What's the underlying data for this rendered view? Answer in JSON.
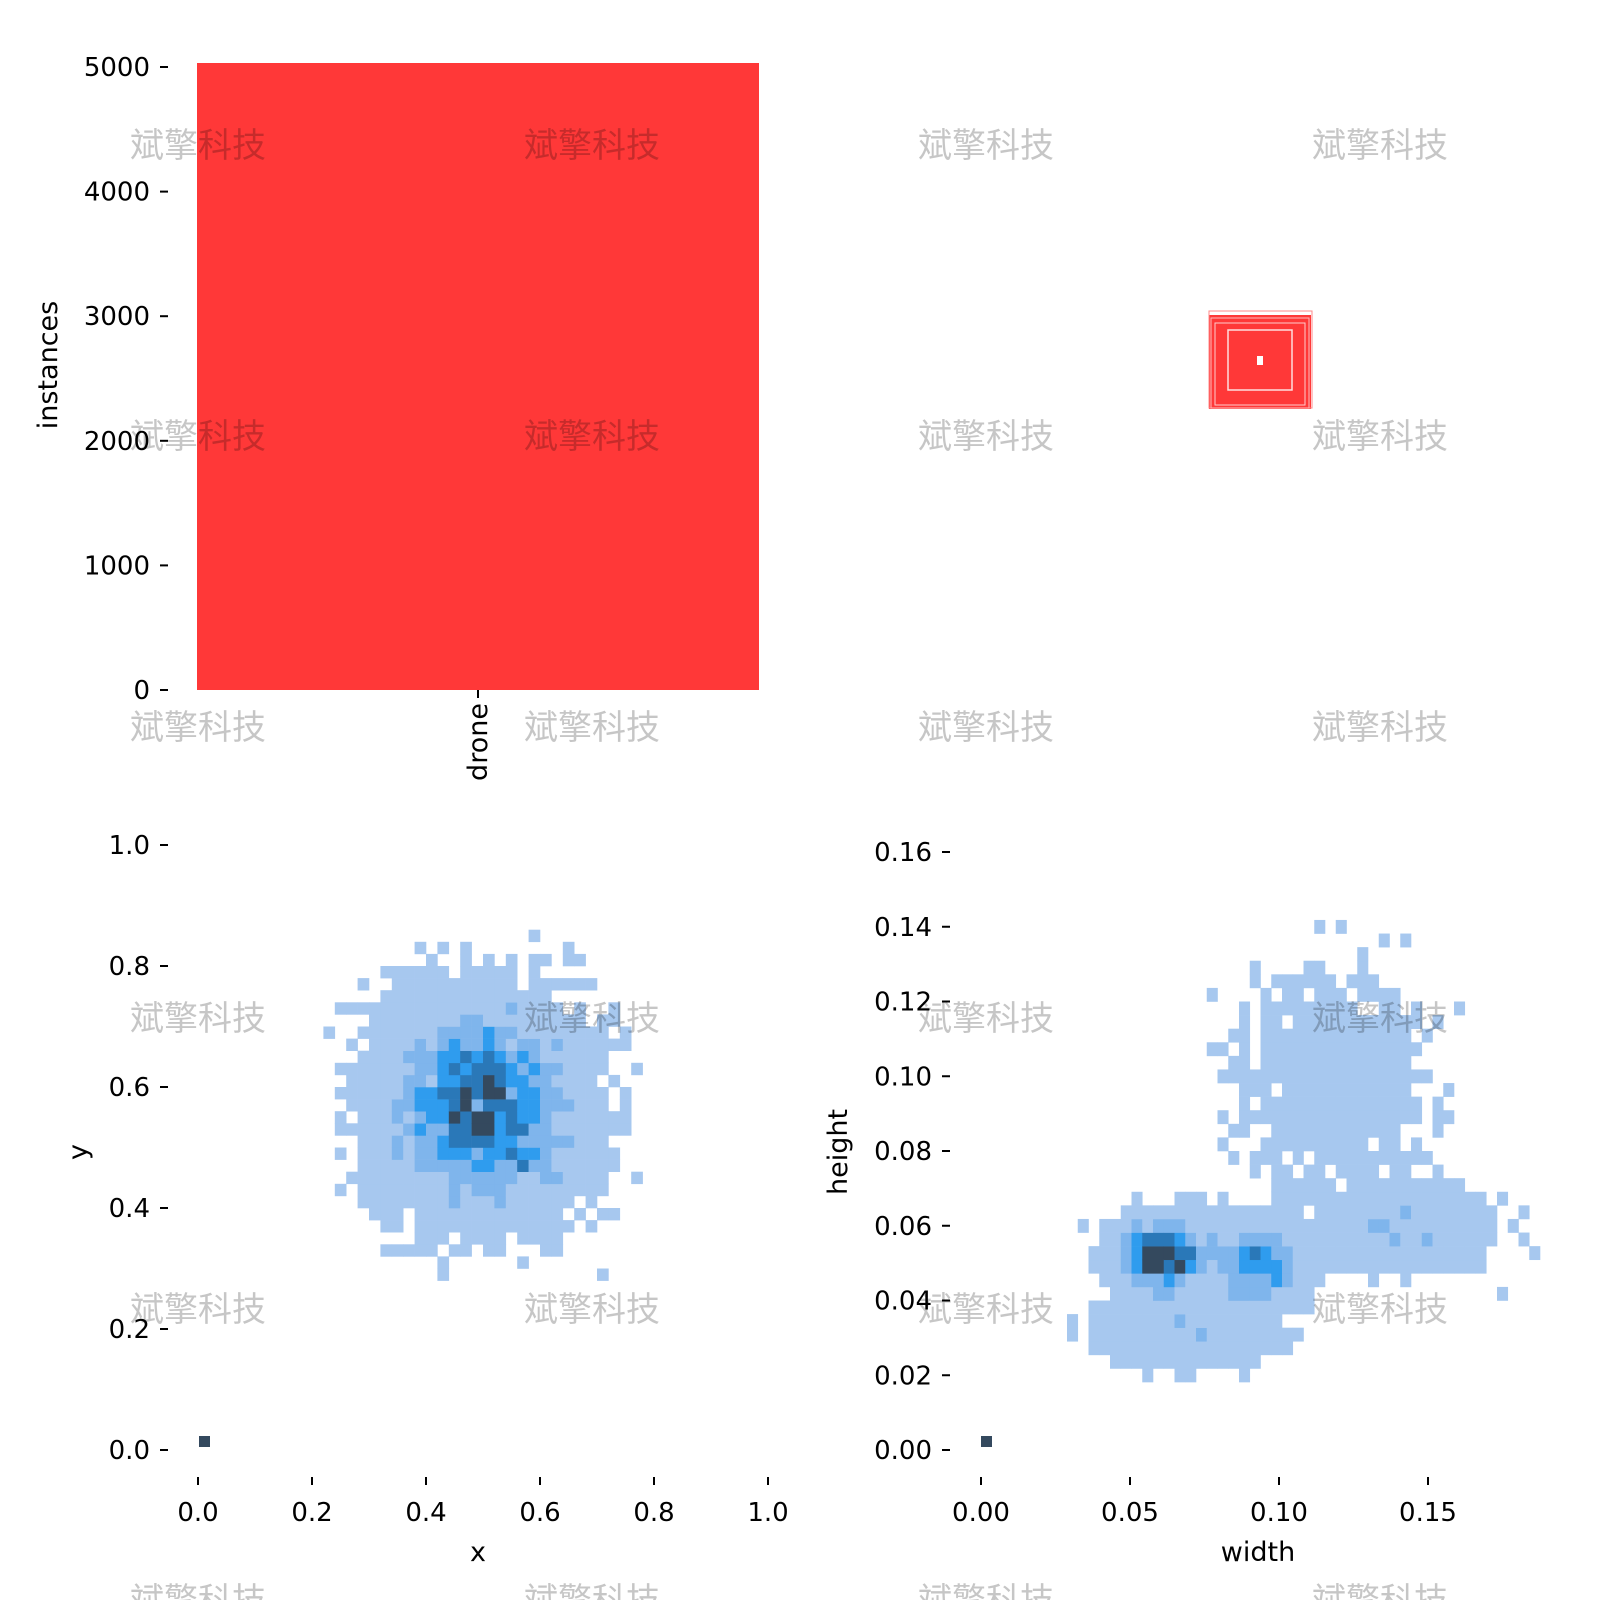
{
  "watermark": "斌擎科技",
  "colors": {
    "bar": "#ff3838",
    "hist_light": "#a7c8ef",
    "hist_mid": "#2f9cee",
    "hist_dark": "#34495e",
    "tick": "#000000"
  },
  "chart_data": [
    {
      "type": "bar",
      "panel": "top-left",
      "categories": [
        "drone"
      ],
      "values": [
        5000
      ],
      "ylabel": "instances",
      "xlabel": "",
      "ylim": [
        0,
        5000
      ],
      "yticks": [
        "0",
        "1000",
        "2000",
        "3000",
        "4000",
        "5000"
      ],
      "grid": false
    },
    {
      "type": "other",
      "panel": "top-right",
      "description_kind": "overlaid boxes",
      "color": "#ff3838"
    },
    {
      "type": "heatmap",
      "panel": "bottom-left",
      "xlabel": "x",
      "ylabel": "y",
      "xlim": [
        0,
        1
      ],
      "ylim": [
        0,
        1
      ],
      "xticks": [
        "0.0",
        "0.2",
        "0.4",
        "0.6",
        "0.8",
        "1.0"
      ],
      "yticks": [
        "0.0",
        "0.2",
        "0.4",
        "0.6",
        "0.8",
        "1.0"
      ],
      "distribution": {
        "center": [
          0.5,
          0.57
        ],
        "spread": [
          0.13,
          0.13
        ]
      },
      "grid": false
    },
    {
      "type": "heatmap",
      "panel": "bottom-right",
      "xlabel": "width",
      "ylabel": "height",
      "xlim": [
        0,
        0.19
      ],
      "ylim": [
        0,
        0.16
      ],
      "xticks": [
        "0.00",
        "0.05",
        "0.10",
        "0.15"
      ],
      "yticks": [
        "0.00",
        "0.02",
        "0.04",
        "0.06",
        "0.08",
        "0.10",
        "0.12",
        "0.14",
        "0.16"
      ],
      "distribution": {
        "centers": [
          [
            0.06,
            0.052
          ],
          [
            0.095,
            0.05
          ],
          [
            0.14,
            0.06
          ],
          [
            0.13,
            0.11
          ]
        ]
      },
      "grid": false
    }
  ]
}
